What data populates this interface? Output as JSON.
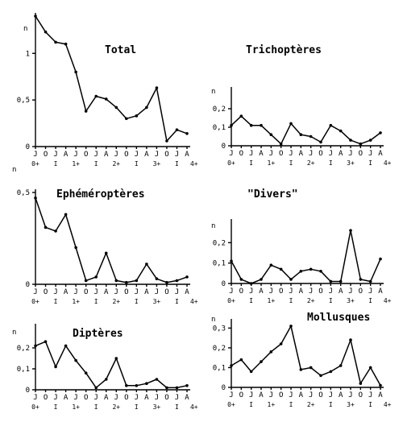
{
  "chart_data": [
    {
      "type": "line",
      "title": "Total",
      "ylabel": "n",
      "ylim": [
        0,
        1.4
      ],
      "yticks": [
        0,
        0.5,
        1
      ],
      "ytick_labels": [
        "0",
        "0,5",
        "1"
      ],
      "categories": [
        "J",
        "O",
        "J",
        "A",
        "J",
        "O",
        "J",
        "A",
        "J",
        "O",
        "J",
        "A",
        "J",
        "O",
        "J",
        "A"
      ],
      "age_labels": [
        "0+",
        "I",
        "1+",
        "I",
        "2+",
        "I",
        "3+",
        "I",
        "4+"
      ],
      "values": [
        1.4,
        1.23,
        1.12,
        1.1,
        0.8,
        0.38,
        0.54,
        0.51,
        0.42,
        0.3,
        0.33,
        0.42,
        0.63,
        0.06,
        0.18,
        0.14
      ]
    },
    {
      "type": "line",
      "title": "Trichoptères",
      "ylabel": "n",
      "ylim": [
        0,
        0.3
      ],
      "yticks": [
        0,
        0.1,
        0.2
      ],
      "ytick_labels": [
        "0",
        "0,1",
        "0,2"
      ],
      "categories": [
        "J",
        "O",
        "J",
        "A",
        "J",
        "O",
        "J",
        "A",
        "J",
        "O",
        "J",
        "A",
        "J",
        "O",
        "J",
        "A"
      ],
      "age_labels": [
        "0+",
        "I",
        "1+",
        "I",
        "2+",
        "I",
        "3+",
        "I",
        "4+"
      ],
      "values": [
        0.11,
        0.16,
        0.11,
        0.11,
        0.06,
        0.01,
        0.12,
        0.06,
        0.05,
        0.02,
        0.11,
        0.08,
        0.03,
        0.01,
        0.03,
        0.07
      ]
    },
    {
      "type": "line",
      "title": "Ephéméroptères",
      "ylabel": "n",
      "ylim": [
        0,
        0.5
      ],
      "yticks": [
        0,
        0.5
      ],
      "ytick_labels": [
        "0",
        "0,5"
      ],
      "categories": [
        "J",
        "O",
        "J",
        "A",
        "J",
        "O",
        "J",
        "A",
        "J",
        "O",
        "J",
        "A",
        "J",
        "O",
        "J",
        "A"
      ],
      "age_labels": [
        "0+",
        "I",
        "1+",
        "I",
        "2+",
        "I",
        "3+",
        "I",
        "4+"
      ],
      "values": [
        0.47,
        0.31,
        0.29,
        0.38,
        0.2,
        0.02,
        0.04,
        0.17,
        0.02,
        0.01,
        0.02,
        0.11,
        0.03,
        0.01,
        0.02,
        0.04
      ]
    },
    {
      "type": "line",
      "title": "\"Divers\"",
      "ylabel": "n",
      "ylim": [
        0,
        0.3
      ],
      "yticks": [
        0,
        0.1,
        0.2
      ],
      "ytick_labels": [
        "0",
        "0,1",
        "0,2"
      ],
      "categories": [
        "J",
        "O",
        "J",
        "A",
        "J",
        "O",
        "J",
        "A",
        "J",
        "O",
        "J",
        "A",
        "J",
        "O",
        "J",
        "A"
      ],
      "age_labels": [
        "0+",
        "I",
        "1+",
        "I",
        "2+",
        "I",
        "3+",
        "I",
        "4+"
      ],
      "values": [
        0.11,
        0.02,
        0.0,
        0.02,
        0.09,
        0.07,
        0.02,
        0.06,
        0.07,
        0.06,
        0.01,
        0.01,
        0.26,
        0.02,
        0.01,
        0.12
      ]
    },
    {
      "type": "line",
      "title": "Diptères",
      "ylabel": "n",
      "ylim": [
        0,
        0.3
      ],
      "yticks": [
        0,
        0.1,
        0.2
      ],
      "ytick_labels": [
        "0",
        "0,1",
        "0,2"
      ],
      "categories": [
        "J",
        "O",
        "J",
        "A",
        "J",
        "O",
        "J",
        "A",
        "J",
        "O",
        "J",
        "A",
        "J",
        "O",
        "J",
        "A"
      ],
      "age_labels": [
        "0+",
        "I",
        "1+",
        "I",
        "2+",
        "I",
        "3+",
        "I",
        "4+"
      ],
      "values": [
        0.21,
        0.23,
        0.11,
        0.21,
        0.14,
        0.08,
        0.01,
        0.05,
        0.15,
        0.02,
        0.02,
        0.03,
        0.05,
        0.01,
        0.01,
        0.02
      ]
    },
    {
      "type": "line",
      "title": "Mollusques",
      "ylabel": "n",
      "ylim": [
        0,
        0.33
      ],
      "yticks": [
        0,
        0.1,
        0.2,
        0.3
      ],
      "ytick_labels": [
        "0",
        "0,1",
        "0,2",
        "0,3"
      ],
      "categories": [
        "J",
        "O",
        "J",
        "A",
        "J",
        "O",
        "J",
        "A",
        "J",
        "O",
        "J",
        "A",
        "J",
        "O",
        "J",
        "A"
      ],
      "age_labels": [
        "0+",
        "I",
        "1+",
        "I",
        "2+",
        "I",
        "3+",
        "I",
        "4+"
      ],
      "values": [
        0.11,
        0.14,
        0.08,
        0.13,
        0.18,
        0.22,
        0.31,
        0.09,
        0.1,
        0.06,
        0.08,
        0.11,
        0.24,
        0.02,
        0.1,
        0.01
      ]
    }
  ]
}
